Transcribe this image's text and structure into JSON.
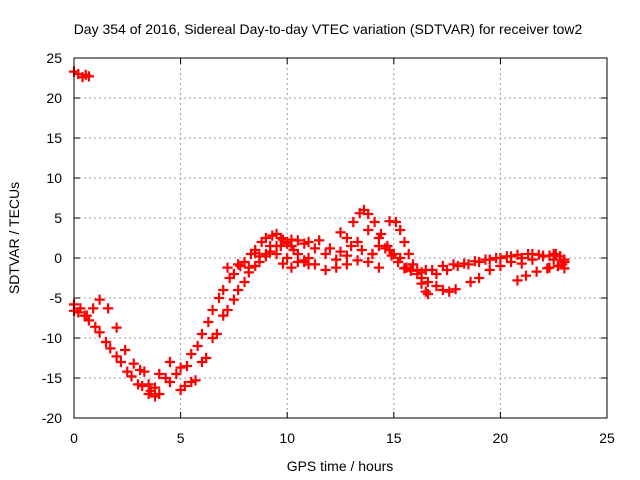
{
  "chart_data": {
    "type": "scatter",
    "title": "Day 354 of 2016, Sidereal Day-to-day VTEC variation (SDTVAR) for receiver tow2",
    "xlabel": "GPS time / hours",
    "ylabel": "SDTVAR / TECUs",
    "xlim": [
      0,
      25
    ],
    "ylim": [
      -20,
      25
    ],
    "xticks": [
      0,
      5,
      10,
      15,
      20,
      25
    ],
    "yticks": [
      -20,
      -15,
      -10,
      -5,
      0,
      5,
      10,
      15,
      20,
      25
    ],
    "grid": true,
    "marker": "+",
    "series": [
      {
        "name": "tow2",
        "color": "#ff0000",
        "points": [
          [
            0.0,
            23.3
          ],
          [
            0.2,
            23.0
          ],
          [
            0.4,
            22.6
          ],
          [
            0.55,
            22.9
          ],
          [
            0.7,
            22.7
          ],
          [
            0.0,
            -5.8
          ],
          [
            0.3,
            -6.3
          ],
          [
            0.6,
            -7.2
          ],
          [
            0.9,
            -6.3
          ],
          [
            1.2,
            -5.2
          ],
          [
            1.6,
            -6.3
          ],
          [
            2.0,
            -8.7
          ],
          [
            2.4,
            -11.5
          ],
          [
            2.8,
            -13.2
          ],
          [
            3.1,
            -14.0
          ],
          [
            3.3,
            -14.2
          ],
          [
            0.0,
            -6.6
          ],
          [
            0.5,
            -7.2
          ],
          [
            1.0,
            -8.6
          ],
          [
            1.5,
            -10.5
          ],
          [
            2.0,
            -12.3
          ],
          [
            2.5,
            -14.2
          ],
          [
            3.0,
            -15.8
          ],
          [
            3.5,
            -17.0
          ],
          [
            3.8,
            -17.3
          ],
          [
            4.0,
            -17.0
          ],
          [
            0.2,
            -6.8
          ],
          [
            0.7,
            -7.8
          ],
          [
            1.2,
            -9.3
          ],
          [
            1.7,
            -11.3
          ],
          [
            2.2,
            -13.0
          ],
          [
            2.7,
            -14.8
          ],
          [
            3.2,
            -16.0
          ],
          [
            3.6,
            -16.6
          ],
          [
            3.5,
            -15.8
          ],
          [
            4.0,
            -14.5
          ],
          [
            4.5,
            -13.0
          ],
          [
            5.0,
            -13.7
          ],
          [
            5.5,
            -12.0
          ],
          [
            6.0,
            -9.5
          ],
          [
            6.5,
            -6.5
          ],
          [
            7.0,
            -4.0
          ],
          [
            7.5,
            -2.0
          ],
          [
            8.0,
            -0.5
          ],
          [
            8.5,
            1.0
          ],
          [
            9.0,
            2.5
          ],
          [
            9.5,
            3.0
          ],
          [
            3.8,
            -16.2
          ],
          [
            4.3,
            -15.0
          ],
          [
            4.8,
            -14.5
          ],
          [
            5.3,
            -13.5
          ],
          [
            5.8,
            -11.0
          ],
          [
            6.3,
            -8.0
          ],
          [
            6.8,
            -5.0
          ],
          [
            7.3,
            -2.5
          ],
          [
            7.8,
            -1.0
          ],
          [
            8.3,
            0.5
          ],
          [
            8.8,
            2.0
          ],
          [
            9.3,
            2.8
          ],
          [
            9.8,
            2.3
          ],
          [
            4.5,
            -15.5
          ],
          [
            5.0,
            -16.5
          ],
          [
            5.5,
            -15.5
          ],
          [
            6.0,
            -13.0
          ],
          [
            6.5,
            -10.0
          ],
          [
            7.0,
            -7.2
          ],
          [
            7.5,
            -5.2
          ],
          [
            8.0,
            -3.0
          ],
          [
            8.5,
            -1.0
          ],
          [
            9.0,
            0.5
          ],
          [
            9.5,
            1.5
          ],
          [
            10.0,
            2.0
          ],
          [
            5.2,
            -16.0
          ],
          [
            5.7,
            -15.3
          ],
          [
            6.2,
            -12.5
          ],
          [
            6.7,
            -9.5
          ],
          [
            7.2,
            -6.5
          ],
          [
            7.7,
            -4.0
          ],
          [
            8.2,
            -1.8
          ],
          [
            8.7,
            0.2
          ],
          [
            9.2,
            1.5
          ],
          [
            9.7,
            2.5
          ],
          [
            10.2,
            2.3
          ],
          [
            7.2,
            -1.2
          ],
          [
            7.7,
            -0.8
          ],
          [
            8.2,
            -1.2
          ],
          [
            8.7,
            -0.5
          ],
          [
            9.2,
            0.8
          ],
          [
            9.7,
            1.5
          ],
          [
            10.2,
            1.5
          ],
          [
            10.5,
            0.5
          ],
          [
            10.8,
            -0.5
          ],
          [
            11.0,
            0.0
          ],
          [
            8.5,
            0.6
          ],
          [
            9.0,
            0.2
          ],
          [
            9.5,
            0.5
          ],
          [
            10.0,
            0.0
          ],
          [
            10.5,
            -0.5
          ],
          [
            11.0,
            -0.8
          ],
          [
            10.2,
            -1.2
          ],
          [
            9.8,
            -0.7
          ],
          [
            10.0,
            1.8
          ],
          [
            10.5,
            2.2
          ],
          [
            11.0,
            2.0
          ],
          [
            11.5,
            2.2
          ],
          [
            12.0,
            1.2
          ],
          [
            12.5,
            0.8
          ],
          [
            13.0,
            1.5
          ],
          [
            13.5,
            1.0
          ],
          [
            14.0,
            0.5
          ],
          [
            10.3,
            1.0
          ],
          [
            10.8,
            1.8
          ],
          [
            11.3,
            1.2
          ],
          [
            11.8,
            0.5
          ],
          [
            12.3,
            -0.2
          ],
          [
            12.8,
            -0.8
          ],
          [
            13.3,
            -0.3
          ],
          [
            13.8,
            -0.5
          ],
          [
            14.3,
            -1.2
          ],
          [
            10.8,
            -0.3
          ],
          [
            11.3,
            -0.8
          ],
          [
            11.8,
            -1.5
          ],
          [
            12.3,
            -1.2
          ],
          [
            12.8,
            0.3
          ],
          [
            13.3,
            2.0
          ],
          [
            13.8,
            3.5
          ],
          [
            14.3,
            2.5
          ],
          [
            14.8,
            1.0
          ],
          [
            12.5,
            3.2
          ],
          [
            12.8,
            2.5
          ],
          [
            13.1,
            4.5
          ],
          [
            13.4,
            5.6
          ],
          [
            13.6,
            6.0
          ],
          [
            13.8,
            5.5
          ],
          [
            14.1,
            4.5
          ],
          [
            14.4,
            3.0
          ],
          [
            14.7,
            1.5
          ],
          [
            15.0,
            0.5
          ],
          [
            15.3,
            0.0
          ],
          [
            15.6,
            -1.2
          ],
          [
            14.0,
            0.5
          ],
          [
            14.3,
            1.5
          ],
          [
            14.6,
            1.2
          ],
          [
            14.9,
            0.3
          ],
          [
            15.2,
            -0.5
          ],
          [
            15.5,
            -1.3
          ],
          [
            15.8,
            -1.5
          ],
          [
            14.8,
            4.6
          ],
          [
            15.1,
            4.5
          ],
          [
            15.3,
            3.5
          ],
          [
            15.5,
            2.0
          ],
          [
            15.7,
            0.5
          ],
          [
            15.9,
            -0.8
          ],
          [
            16.1,
            -2.0
          ],
          [
            16.3,
            -3.2
          ],
          [
            16.5,
            -4.2
          ],
          [
            16.6,
            -4.5
          ],
          [
            15.5,
            -1.3
          ],
          [
            15.8,
            -1.5
          ],
          [
            16.1,
            -1.5
          ],
          [
            16.3,
            -2.5
          ],
          [
            16.6,
            -3.0
          ],
          [
            17.0,
            -3.5
          ],
          [
            17.3,
            -4.0
          ],
          [
            17.6,
            -4.2
          ],
          [
            17.9,
            -3.9
          ],
          [
            15.8,
            -1.6
          ],
          [
            16.3,
            -1.8
          ],
          [
            16.8,
            -1.5
          ],
          [
            17.3,
            -1.0
          ],
          [
            17.8,
            -0.8
          ],
          [
            18.3,
            -0.7
          ],
          [
            18.8,
            -0.4
          ],
          [
            19.3,
            -0.2
          ],
          [
            19.8,
            0.0
          ],
          [
            20.3,
            0.2
          ],
          [
            20.8,
            0.4
          ],
          [
            21.3,
            0.5
          ],
          [
            21.8,
            0.4
          ],
          [
            22.3,
            0.3
          ],
          [
            22.8,
            0.2
          ],
          [
            16.5,
            -1.5
          ],
          [
            17.0,
            -2.0
          ],
          [
            17.5,
            -1.5
          ],
          [
            18.0,
            -1.0
          ],
          [
            18.5,
            -0.8
          ],
          [
            19.0,
            -0.5
          ],
          [
            19.5,
            -0.2
          ],
          [
            20.0,
            0.0
          ],
          [
            20.5,
            0.2
          ],
          [
            21.0,
            0.0
          ],
          [
            18.6,
            -3.0
          ],
          [
            19.0,
            -2.5
          ],
          [
            19.5,
            -1.5
          ],
          [
            20.0,
            -1.0
          ],
          [
            20.5,
            -0.5
          ],
          [
            21.0,
            0.0
          ],
          [
            21.5,
            0.5
          ],
          [
            22.0,
            0.3
          ],
          [
            22.5,
            -0.2
          ],
          [
            22.9,
            -0.8
          ],
          [
            21.0,
            -0.7
          ],
          [
            21.5,
            -0.2
          ],
          [
            22.0,
            0.2
          ],
          [
            22.5,
            0.5
          ],
          [
            22.8,
            0.2
          ],
          [
            23.0,
            -0.5
          ],
          [
            22.7,
            -1.0
          ],
          [
            22.3,
            -1.2
          ],
          [
            20.8,
            -2.8
          ],
          [
            21.2,
            -2.2
          ],
          [
            21.7,
            -1.7
          ],
          [
            22.2,
            -1.3
          ],
          [
            22.7,
            -1.0
          ],
          [
            23.0,
            -1.3
          ],
          [
            23.0,
            -0.2
          ],
          [
            22.6,
            0.5
          ]
        ]
      }
    ]
  }
}
